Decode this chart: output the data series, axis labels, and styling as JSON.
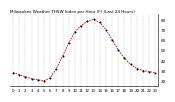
{
  "title": "Milwaukee Weather THSW Index per Hour (F) (Last 24 Hours)",
  "hours": [
    0,
    1,
    2,
    3,
    4,
    5,
    6,
    7,
    8,
    9,
    10,
    11,
    12,
    13,
    14,
    15,
    16,
    17,
    18,
    19,
    20,
    21,
    22,
    23
  ],
  "values": [
    28,
    26,
    24,
    22,
    21,
    20,
    23,
    32,
    44,
    57,
    68,
    74,
    78,
    80,
    77,
    70,
    60,
    50,
    42,
    36,
    32,
    30,
    29,
    28
  ],
  "line_color": "#cc0000",
  "marker_color": "#000000",
  "bg_color": "#ffffff",
  "plot_bg": "#ffffff",
  "grid_color": "#bbbbbb",
  "ylim": [
    15,
    85
  ],
  "ytick_vals": [
    20,
    30,
    40,
    50,
    60,
    70,
    80
  ],
  "ytick_labels": [
    "20",
    "30",
    "40",
    "50",
    "60",
    "70",
    "80"
  ],
  "title_fontsize": 3.0,
  "xlabel_fontsize": 2.8,
  "ylabel_fontsize": 3.0,
  "linewidth": 0.6,
  "markersize": 1.0
}
